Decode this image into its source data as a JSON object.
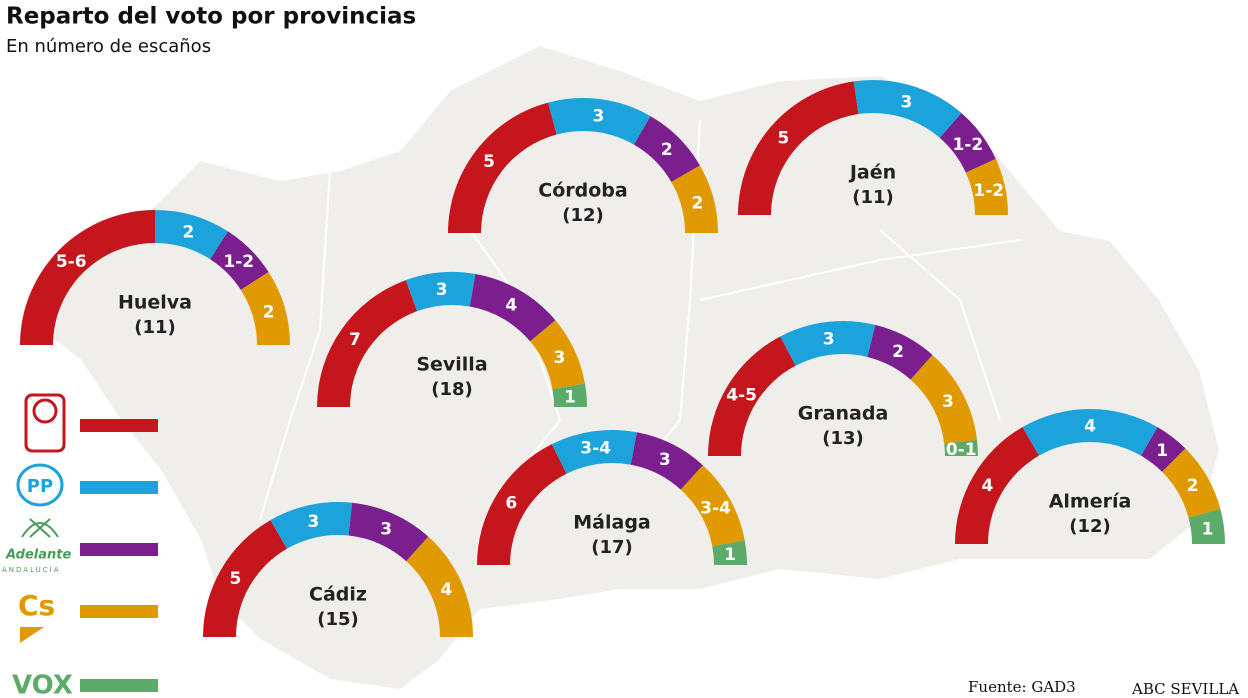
{
  "header": {
    "title": "Reparto del voto por provincias",
    "subtitle": "En número de escaños"
  },
  "parties": [
    {
      "name": "PSOE",
      "logo": "",
      "color": "#c4161c"
    },
    {
      "name": "PP",
      "logo": "PP",
      "color": "#1ca3dc"
    },
    {
      "name": "Adelante",
      "logo": "Adelante",
      "sublogo": "ANDALUCÍA",
      "color": "#7b1f8f"
    },
    {
      "name": "Cs",
      "logo": "Cs",
      "color": "#e09a00"
    },
    {
      "name": "VOX",
      "logo": "VOX",
      "color": "#5cab6a"
    }
  ],
  "provinces": [
    {
      "name": "Huelva",
      "total": "(11)",
      "seats": [
        "5-6",
        "2",
        "1-2",
        "2"
      ]
    },
    {
      "name": "Córdoba",
      "total": "(12)",
      "seats": [
        "5",
        "3",
        "2",
        "2"
      ]
    },
    {
      "name": "Jaén",
      "total": "(11)",
      "seats": [
        "5",
        "3",
        "1-2",
        "1-2"
      ]
    },
    {
      "name": "Sevilla",
      "total": "(18)",
      "seats": [
        "7",
        "3",
        "4",
        "3",
        "1"
      ]
    },
    {
      "name": "Granada",
      "total": "(13)",
      "seats": [
        "4-5",
        "3",
        "2",
        "3",
        "0-1"
      ]
    },
    {
      "name": "Almería",
      "total": "(12)",
      "seats": [
        "4",
        "4",
        "1",
        "2",
        "1"
      ]
    },
    {
      "name": "Málaga",
      "total": "(17)",
      "seats": [
        "6",
        "3-4",
        "3",
        "3-4",
        "1"
      ]
    },
    {
      "name": "Cádiz",
      "total": "(15)",
      "seats": [
        "5",
        "3",
        "3",
        "4"
      ]
    }
  ],
  "footer": {
    "source": "Fuente: GAD3",
    "credit": "ABC SEVILLA"
  }
}
